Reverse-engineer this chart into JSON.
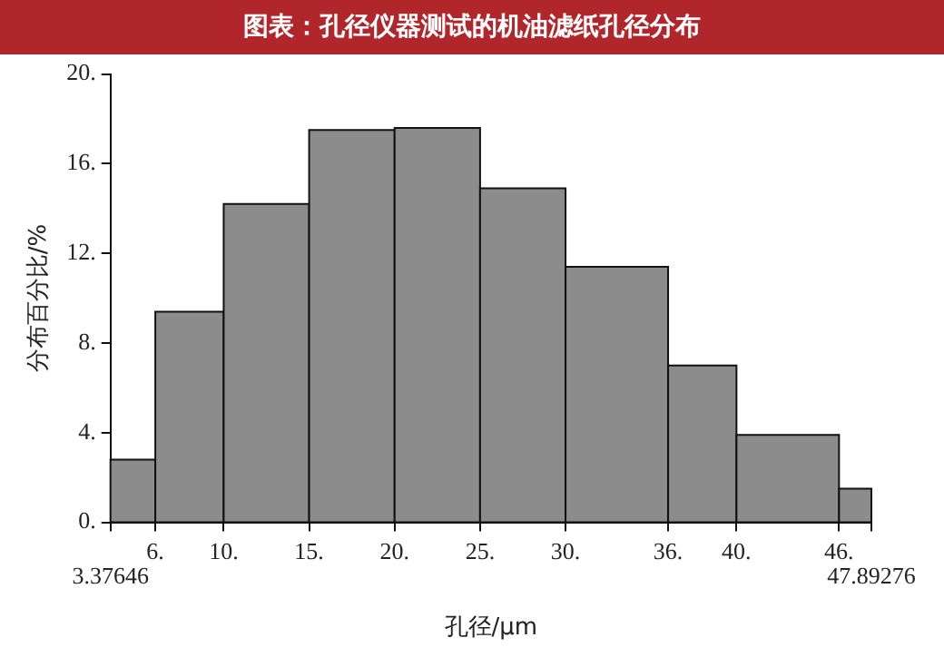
{
  "chart_data": {
    "type": "histogram",
    "title": "图表：孔径仪器测试的机油滤纸孔径分布",
    "xlabel": "孔径/μm",
    "ylabel": "分布百分比/%",
    "color": "#8c8c8c",
    "bins": [
      3.37646,
      6,
      10,
      15,
      20,
      25,
      30,
      36,
      40,
      46,
      47.89276
    ],
    "values": [
      2.8,
      9.4,
      14.2,
      17.5,
      17.6,
      14.9,
      11.4,
      7.0,
      3.9,
      1.5
    ],
    "xlim": [
      3.37646,
      47.89276
    ],
    "xticks": [
      {
        "value": 3.37646,
        "label": null
      },
      {
        "value": 6,
        "label": "6."
      },
      {
        "value": 10,
        "label": "10."
      },
      {
        "value": 15,
        "label": "15."
      },
      {
        "value": 20,
        "label": "20."
      },
      {
        "value": 25,
        "label": "25."
      },
      {
        "value": 30,
        "label": "30."
      },
      {
        "value": 36,
        "label": "36."
      },
      {
        "value": 40,
        "label": "40."
      },
      {
        "value": 46,
        "label": "46."
      },
      {
        "value": 47.89276,
        "label": null
      }
    ],
    "annotations": [
      {
        "text": "3.37646",
        "x": 3.37646,
        "y": 0
      },
      {
        "text": "47.89276",
        "x": 47.89276,
        "y": 0
      }
    ],
    "ylim": [
      0,
      20
    ],
    "yticks": [
      {
        "value": 0,
        "label": "0."
      },
      {
        "value": 4,
        "label": "4."
      },
      {
        "value": 8,
        "label": "8."
      },
      {
        "value": 12,
        "label": "12."
      },
      {
        "value": 16,
        "label": "16."
      },
      {
        "value": 20,
        "label": "20."
      }
    ],
    "grid": false,
    "legend": false
  }
}
